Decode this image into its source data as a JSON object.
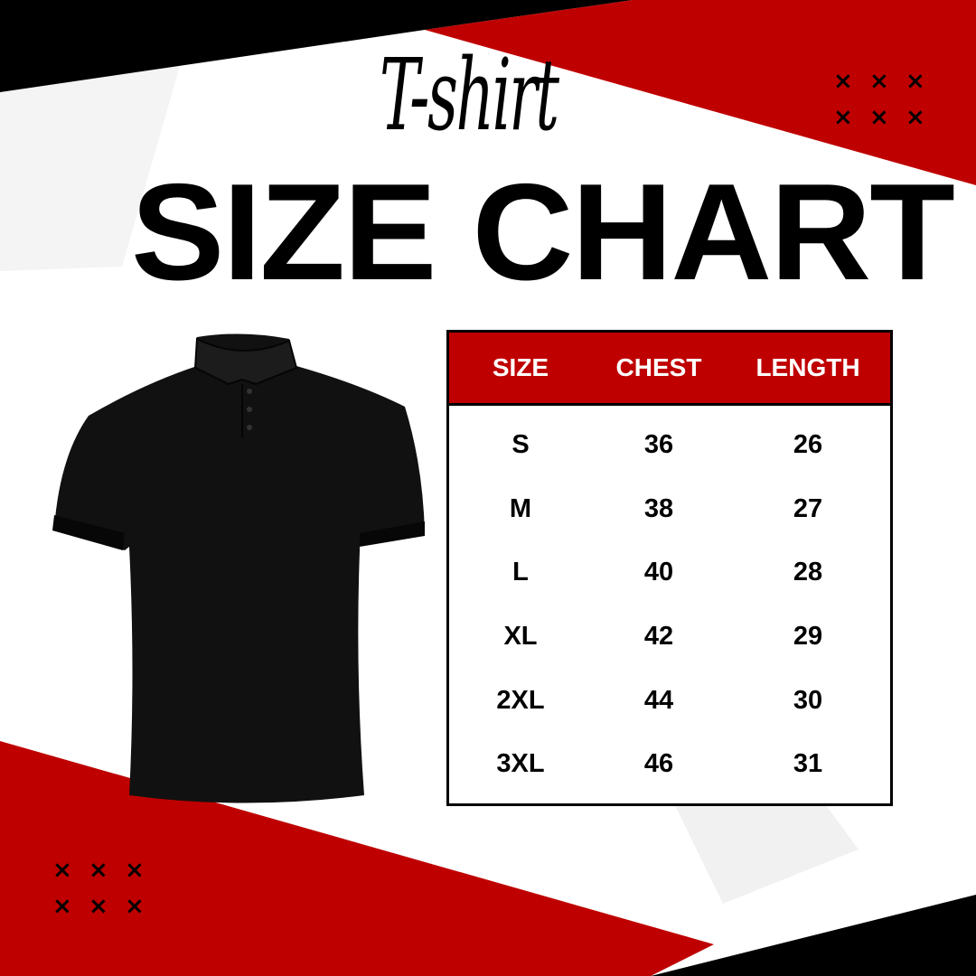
{
  "title_script": "T-shirt",
  "title": "SIZE CHART",
  "colors": {
    "accent": "#bf0000",
    "dark": "#000000",
    "background": "#ffffff"
  },
  "decorations": {
    "pattern_glyph": "×"
  },
  "image": "black-polo-shirt",
  "table": {
    "headers": [
      "SIZE",
      "CHEST",
      "LENGTH"
    ],
    "rows": [
      [
        "S",
        "36",
        "26"
      ],
      [
        "M",
        "38",
        "27"
      ],
      [
        "L",
        "40",
        "28"
      ],
      [
        "XL",
        "42",
        "29"
      ],
      [
        "2XL",
        "44",
        "30"
      ],
      [
        "3XL",
        "46",
        "31"
      ]
    ]
  }
}
